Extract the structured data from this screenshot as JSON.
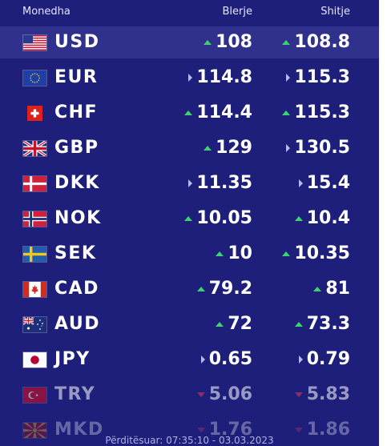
{
  "header": {
    "currency_label": "Monedha",
    "buy_label": "Blerje",
    "sell_label": "Shitje"
  },
  "rates": [
    {
      "code": "USD",
      "flag": "us-flag-icon",
      "buy": "108",
      "buy_trend": "up",
      "sell": "108.8",
      "sell_trend": "up"
    },
    {
      "code": "EUR",
      "flag": "eu-flag-icon",
      "buy": "114.8",
      "buy_trend": "same",
      "sell": "115.3",
      "sell_trend": "same"
    },
    {
      "code": "CHF",
      "flag": "ch-flag-icon",
      "buy": "114.4",
      "buy_trend": "up",
      "sell": "115.3",
      "sell_trend": "up"
    },
    {
      "code": "GBP",
      "flag": "gb-flag-icon",
      "buy": "129",
      "buy_trend": "up",
      "sell": "130.5",
      "sell_trend": "same"
    },
    {
      "code": "DKK",
      "flag": "dk-flag-icon",
      "buy": "11.35",
      "buy_trend": "same",
      "sell": "15.4",
      "sell_trend": "same"
    },
    {
      "code": "NOK",
      "flag": "no-flag-icon",
      "buy": "10.05",
      "buy_trend": "up",
      "sell": "10.4",
      "sell_trend": "up"
    },
    {
      "code": "SEK",
      "flag": "se-flag-icon",
      "buy": "10",
      "buy_trend": "up",
      "sell": "10.35",
      "sell_trend": "up"
    },
    {
      "code": "CAD",
      "flag": "ca-flag-icon",
      "buy": "79.2",
      "buy_trend": "up",
      "sell": "81",
      "sell_trend": "up"
    },
    {
      "code": "AUD",
      "flag": "au-flag-icon",
      "buy": "72",
      "buy_trend": "up",
      "sell": "73.3",
      "sell_trend": "up"
    },
    {
      "code": "JPY",
      "flag": "jp-flag-icon",
      "buy": "0.65",
      "buy_trend": "same",
      "sell": "0.79",
      "sell_trend": "same"
    },
    {
      "code": "TRY",
      "flag": "tr-flag-icon",
      "buy": "5.06",
      "buy_trend": "down",
      "sell": "5.83",
      "sell_trend": "down"
    },
    {
      "code": "MKD",
      "flag": "mk-flag-icon",
      "buy": "1.76",
      "buy_trend": "down",
      "sell": "1.86",
      "sell_trend": "down"
    }
  ],
  "footer": {
    "updated": "Përditësuar: 07:35:10 - 03.03.2023"
  },
  "colors": {
    "background": "#1e1f7a",
    "highlight_row": "#30318c",
    "trend_up": "#3ed16f",
    "trend_down": "#e0405a",
    "trend_same": "#b8bbe8"
  }
}
